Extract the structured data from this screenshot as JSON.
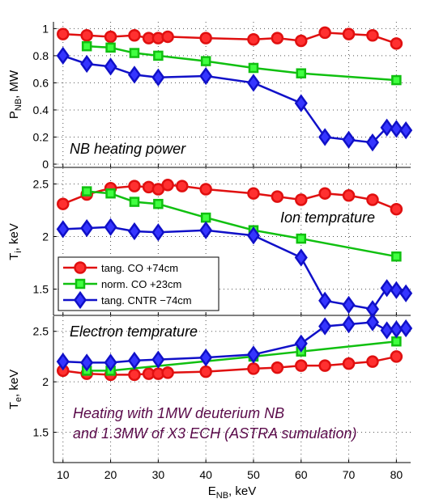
{
  "chart_data": {
    "type": "line",
    "grid": true,
    "x_axis": {
      "label": "E",
      "label_sub": "NB",
      "label_unit": ", keV",
      "range": [
        8,
        83
      ],
      "ticks": [
        10,
        20,
        30,
        40,
        50,
        60,
        70,
        80
      ],
      "tick_labels": [
        "10",
        "20",
        "30",
        "40",
        "50",
        "60",
        "70",
        "80"
      ]
    },
    "legend": {
      "location": "lower-left of middle panel",
      "entries": [
        "tang. CO +74cm",
        "norm. CO +23cm",
        "tang. CNTR −74cm"
      ]
    },
    "series_styles": [
      {
        "name": "tang. CO +74cm",
        "color": "#e01010",
        "fill": "#ff3030",
        "marker": "circle"
      },
      {
        "name": "norm. CO +23cm",
        "color": "#10c010",
        "fill": "#40ff40",
        "marker": "square"
      },
      {
        "name": "tang. CNTR −74cm",
        "color": "#1010c8",
        "fill": "#3535ff",
        "marker": "diamond"
      }
    ],
    "panels": [
      {
        "id": "power",
        "ylabel": "P",
        "ylabel_sub": "NB",
        "ylabel_unit": ", MW",
        "ylim": [
          0,
          1.05
        ],
        "yticks": [
          0,
          0.2,
          0.4,
          0.6,
          0.8,
          1
        ],
        "ytick_labels": [
          "0",
          "0.2",
          "0.4",
          "0.6",
          "0.8",
          "1"
        ],
        "annotation": "NB heating power",
        "series": [
          {
            "name": "tang. CO +74cm",
            "x": [
              10,
              15,
              20,
              25,
              28,
              30,
              32,
              40,
              50,
              55,
              60,
              65,
              70,
              75,
              80
            ],
            "y": [
              0.96,
              0.95,
              0.94,
              0.95,
              0.93,
              0.93,
              0.94,
              0.93,
              0.92,
              0.93,
              0.91,
              0.97,
              0.96,
              0.95,
              0.89
            ]
          },
          {
            "name": "norm. CO +23cm",
            "x": [
              15,
              20,
              25,
              30,
              40,
              50,
              60,
              80
            ],
            "y": [
              0.87,
              0.86,
              0.82,
              0.8,
              0.76,
              0.71,
              0.67,
              0.62
            ]
          },
          {
            "name": "tang. CNTR −74cm",
            "x": [
              10,
              15,
              20,
              25,
              30,
              40,
              50,
              60,
              65,
              70,
              75,
              78,
              80,
              82
            ],
            "y": [
              0.8,
              0.74,
              0.72,
              0.66,
              0.64,
              0.65,
              0.6,
              0.45,
              0.2,
              0.18,
              0.16,
              0.27,
              0.26,
              0.25
            ]
          }
        ]
      },
      {
        "id": "ion",
        "ylabel": "T",
        "ylabel_sub": "i",
        "ylabel_unit": ", keV",
        "ylim": [
          1.25,
          2.65
        ],
        "yticks": [
          1.5,
          2,
          2.5
        ],
        "ytick_labels": [
          "1.5",
          "2",
          "2.5"
        ],
        "annotation": "Ion temprature",
        "series": [
          {
            "name": "tang. CO +74cm",
            "x": [
              10,
              15,
              20,
              25,
              28,
              30,
              32,
              35,
              40,
              50,
              55,
              60,
              65,
              70,
              75,
              80
            ],
            "y": [
              2.31,
              2.4,
              2.46,
              2.48,
              2.47,
              2.45,
              2.49,
              2.48,
              2.45,
              2.41,
              2.38,
              2.35,
              2.41,
              2.39,
              2.35,
              2.26
            ]
          },
          {
            "name": "norm. CO +23cm",
            "x": [
              15,
              20,
              25,
              30,
              40,
              50,
              60,
              80
            ],
            "y": [
              2.43,
              2.41,
              2.33,
              2.31,
              2.18,
              2.06,
              1.98,
              1.81
            ]
          },
          {
            "name": "tang. CNTR −74cm",
            "x": [
              10,
              15,
              20,
              25,
              30,
              40,
              50,
              60,
              65,
              70,
              75,
              78,
              80,
              82
            ],
            "y": [
              2.07,
              2.08,
              2.09,
              2.05,
              2.04,
              2.06,
              2.01,
              1.8,
              1.39,
              1.35,
              1.31,
              1.51,
              1.49,
              1.46
            ]
          }
        ]
      },
      {
        "id": "electron",
        "ylabel": "T",
        "ylabel_sub": "e",
        "ylabel_unit": ", keV",
        "ylim": [
          1.2,
          2.65
        ],
        "yticks": [
          1.5,
          2,
          2.5
        ],
        "ytick_labels": [
          "1.5",
          "2",
          "2.5"
        ],
        "annotation": "Electron temprature",
        "annotation2": [
          "Heating with 1MW deuterium NB",
          "and 1.3MW of X3 ECH (ASTRA sumulation)"
        ],
        "series": [
          {
            "name": "tang. CO +74cm",
            "x": [
              10,
              15,
              20,
              25,
              28,
              30,
              32,
              40,
              50,
              55,
              60,
              65,
              70,
              75,
              80
            ],
            "y": [
              2.11,
              2.08,
              2.07,
              2.07,
              2.08,
              2.08,
              2.09,
              2.1,
              2.13,
              2.14,
              2.16,
              2.16,
              2.18,
              2.2,
              2.25
            ]
          },
          {
            "name": "norm. CO +23cm",
            "x": [
              15,
              20,
              50,
              60,
              80
            ],
            "y": [
              2.11,
              2.11,
              2.25,
              2.3,
              2.4
            ]
          },
          {
            "name": "tang. CNTR −74cm",
            "x": [
              10,
              15,
              20,
              25,
              30,
              40,
              50,
              60,
              65,
              70,
              75,
              78,
              80,
              82
            ],
            "y": [
              2.2,
              2.19,
              2.19,
              2.21,
              2.22,
              2.24,
              2.27,
              2.38,
              2.55,
              2.57,
              2.59,
              2.51,
              2.52,
              2.53
            ]
          }
        ]
      }
    ]
  }
}
